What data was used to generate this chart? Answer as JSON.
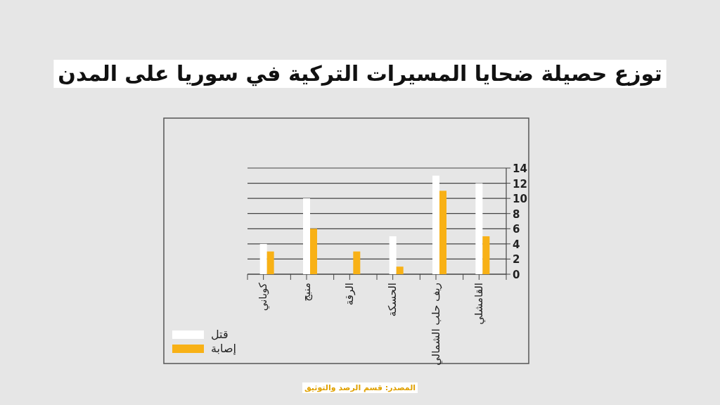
{
  "chart_data": {
    "type": "bar",
    "title": "توزع حصيلة ضحايا المسيرات التركية في سوريا على المدن",
    "categories": [
      "كوباني",
      "منبج",
      "الرقة",
      "الحسكة",
      "ريف حلب الشمالي",
      "القامشلي"
    ],
    "series": [
      {
        "name": "قتل",
        "color": "#ffffff",
        "values": [
          4,
          10,
          0,
          5,
          13,
          12
        ]
      },
      {
        "name": "إصابة",
        "color": "#f8b116",
        "values": [
          3,
          6,
          3,
          1,
          11,
          5
        ]
      }
    ],
    "ylim": [
      0,
      14
    ],
    "yticks": [
      0,
      2,
      4,
      6,
      8,
      10,
      12,
      14
    ],
    "grid": "y",
    "legend": "bottom left",
    "annotations": [
      "المصدر: قسم الرصد والتوثيق"
    ]
  }
}
